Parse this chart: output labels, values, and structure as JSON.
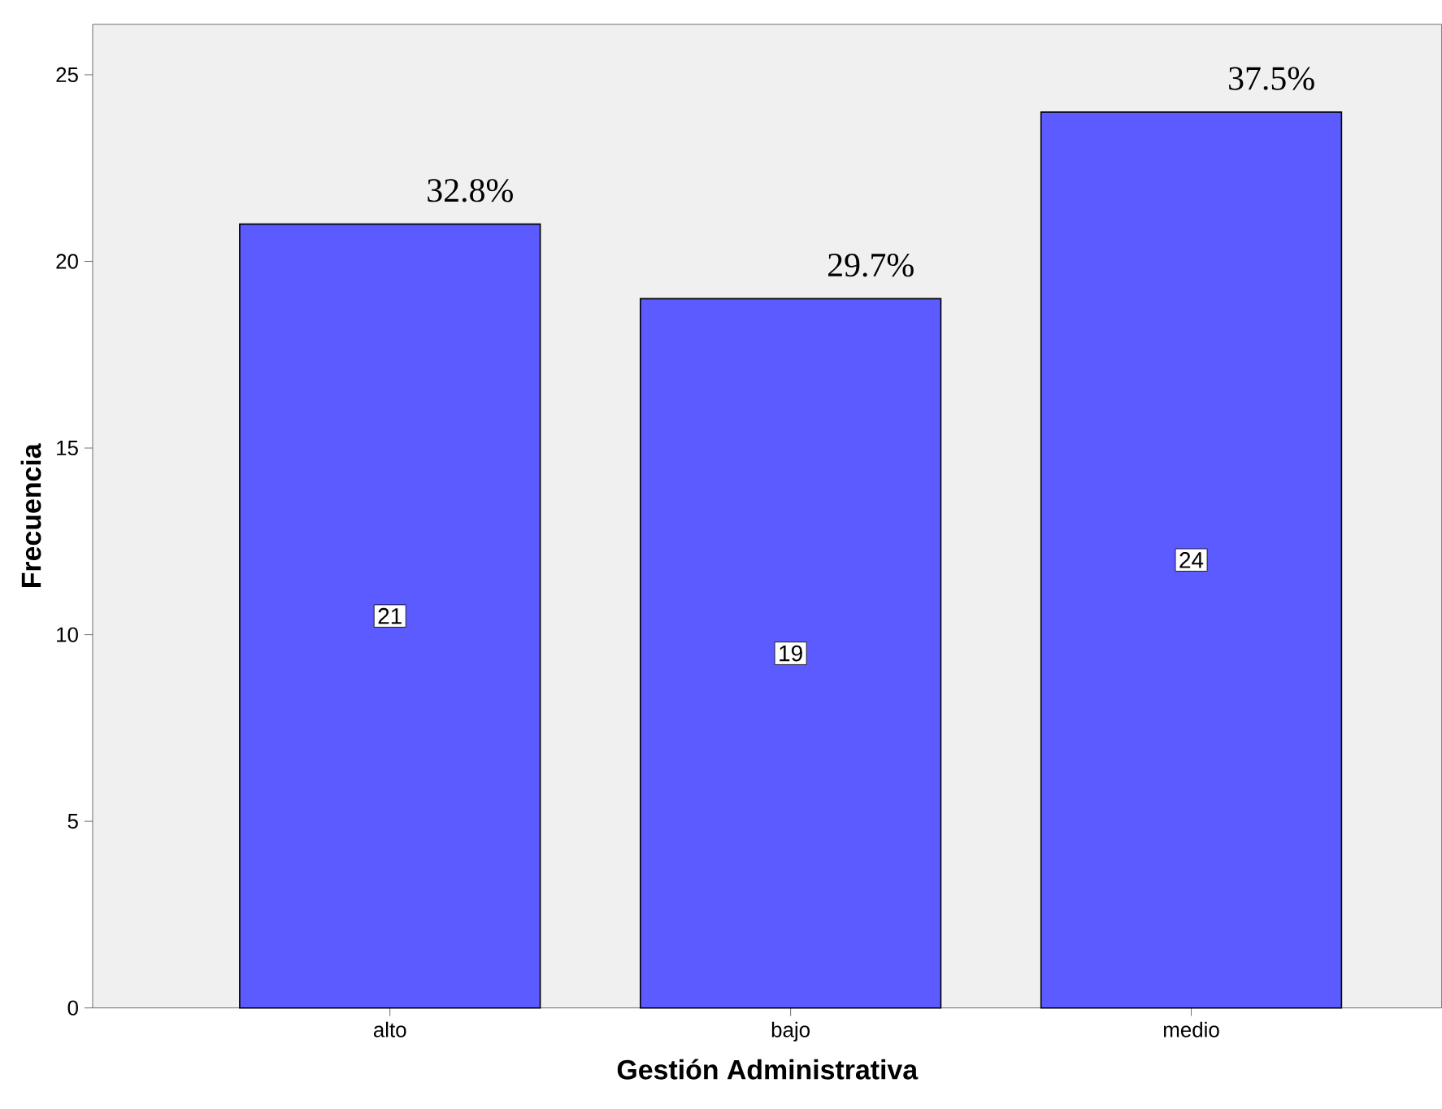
{
  "chart_data": {
    "type": "bar",
    "xlabel": "Gestión Administrativa",
    "ylabel": "Frecuencia",
    "categories": [
      "alto",
      "bajo",
      "medio"
    ],
    "values": [
      21,
      19,
      24
    ],
    "color": "#5b5bff",
    "data_labels": true,
    "ylim": [
      0,
      26.35
    ],
    "yticks": [
      0,
      5,
      10,
      15,
      20,
      25
    ],
    "annotations": [
      {
        "text": "32.8%",
        "x": "alto",
        "y": 21
      },
      {
        "text": "29.7%",
        "x": "bajo",
        "y": 19
      },
      {
        "text": "37.5%",
        "x": "medio",
        "y": 24
      }
    ]
  }
}
